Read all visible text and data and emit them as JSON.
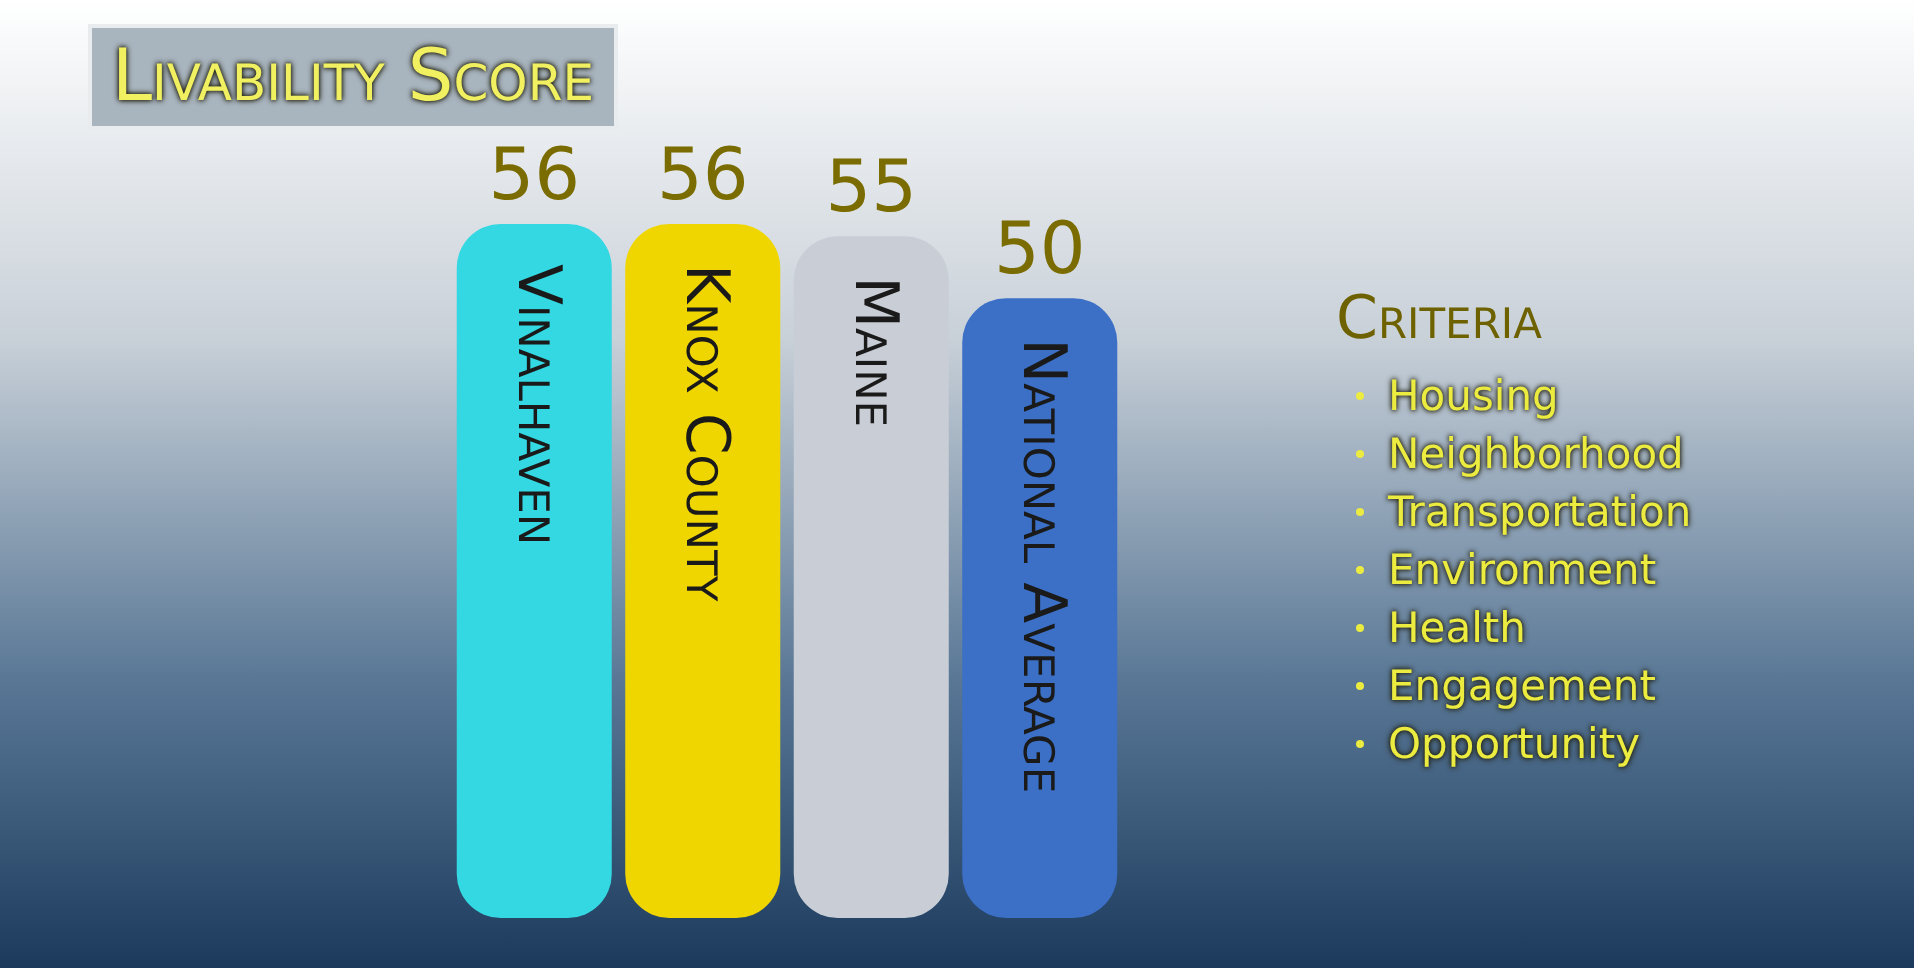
{
  "chart_data": {
    "type": "bar",
    "title": "Livability Score",
    "categories": [
      "Vinalhaven",
      "Knox County",
      "Maine",
      "National Average"
    ],
    "values": [
      56,
      56,
      55,
      50
    ],
    "colors": [
      "#33d8e2",
      "#f0d600",
      "#c9ced6",
      "#3b70c6"
    ],
    "data_labels": true,
    "tick_labels": false,
    "legend": false,
    "annotations": [
      "Criteria",
      "Housing",
      "Neighborhood",
      "Transportation",
      "Environment",
      "Health",
      "Engagement",
      "Opportunity"
    ]
  }
}
